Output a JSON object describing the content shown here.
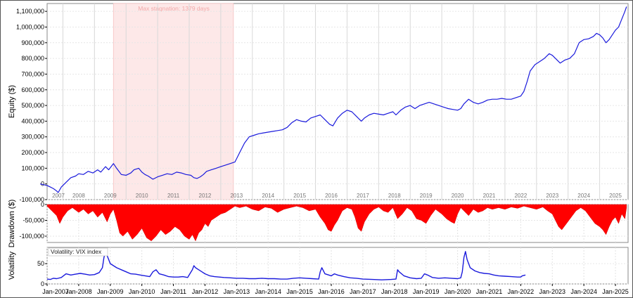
{
  "chart_data": [
    {
      "type": "line",
      "ylabel": "Equity ($)",
      "ylim": [
        -100000,
        1150000
      ],
      "yticks": [
        "-100,000",
        "0",
        "100,000",
        "200,000",
        "300,000",
        "400,000",
        "500,000",
        "600,000",
        "700,000",
        "800,000",
        "900,000",
        "1,000,000",
        "1,100,000"
      ],
      "year_labels": [
        "2007",
        "2008",
        "2009",
        "2010",
        "2011",
        "2012",
        "2013",
        "2014",
        "2015",
        "2016",
        "2017",
        "2018",
        "2019",
        "2020",
        "2021",
        "2022",
        "2023",
        "2024",
        "2025"
      ],
      "stagnation": {
        "label": "Max stagnation: 1379 days",
        "start": 2009.1,
        "end": 2012.9
      },
      "series": [
        {
          "color": "#1a1adc",
          "x": [
            2006.78,
            2007.0,
            2007.1,
            2007.2,
            2007.3,
            2007.35,
            2007.45,
            2007.6,
            2007.75,
            2007.9,
            2008.0,
            2008.15,
            2008.3,
            2008.45,
            2008.6,
            2008.7,
            2008.85,
            2008.95,
            2009.1,
            2009.2,
            2009.35,
            2009.5,
            2009.65,
            2009.75,
            2009.9,
            2010.0,
            2010.1,
            2010.2,
            2010.35,
            2010.5,
            2010.65,
            2010.8,
            2010.95,
            2011.1,
            2011.25,
            2011.4,
            2011.55,
            2011.65,
            2011.75,
            2011.85,
            2011.95,
            2012.05,
            2012.2,
            2012.35,
            2012.5,
            2012.65,
            2012.8,
            2012.95,
            2013.1,
            2013.25,
            2013.4,
            2013.55,
            2013.7,
            2013.85,
            2014.0,
            2014.15,
            2014.3,
            2014.45,
            2014.6,
            2014.75,
            2014.9,
            2015.05,
            2015.2,
            2015.35,
            2015.5,
            2015.65,
            2015.8,
            2015.95,
            2016.05,
            2016.2,
            2016.35,
            2016.5,
            2016.65,
            2016.8,
            2016.95,
            2017.05,
            2017.2,
            2017.35,
            2017.5,
            2017.65,
            2017.8,
            2017.95,
            2018.05,
            2018.2,
            2018.35,
            2018.5,
            2018.65,
            2018.8,
            2018.95,
            2019.1,
            2019.25,
            2019.4,
            2019.55,
            2019.7,
            2019.85,
            2020.0,
            2020.1,
            2020.2,
            2020.35,
            2020.5,
            2020.65,
            2020.8,
            2020.95,
            2021.1,
            2021.25,
            2021.4,
            2021.55,
            2021.7,
            2021.85,
            2022.0,
            2022.1,
            2022.2,
            2022.3,
            2022.45,
            2022.6,
            2022.75,
            2022.9,
            2023.0,
            2023.1,
            2023.25,
            2023.4,
            2023.55,
            2023.7,
            2023.85,
            2024.0,
            2024.15,
            2024.3,
            2024.4,
            2024.5,
            2024.6,
            2024.7,
            2024.8,
            2024.9,
            2025.0,
            2025.1,
            2025.2,
            2025.3,
            2025.35
          ],
          "y": [
            0,
            -10000,
            -20000,
            -30000,
            -45000,
            -55000,
            -20000,
            10000,
            40000,
            50000,
            65000,
            60000,
            80000,
            70000,
            90000,
            75000,
            110000,
            90000,
            130000,
            100000,
            60000,
            55000,
            70000,
            90000,
            100000,
            75000,
            60000,
            50000,
            30000,
            45000,
            55000,
            65000,
            60000,
            75000,
            70000,
            60000,
            55000,
            40000,
            35000,
            45000,
            60000,
            80000,
            90000,
            100000,
            110000,
            120000,
            130000,
            140000,
            200000,
            260000,
            300000,
            310000,
            320000,
            325000,
            330000,
            335000,
            340000,
            345000,
            360000,
            390000,
            410000,
            400000,
            395000,
            420000,
            430000,
            440000,
            410000,
            380000,
            370000,
            420000,
            450000,
            470000,
            460000,
            430000,
            400000,
            420000,
            440000,
            450000,
            445000,
            440000,
            450000,
            460000,
            440000,
            470000,
            490000,
            500000,
            480000,
            500000,
            510000,
            520000,
            510000,
            500000,
            490000,
            480000,
            475000,
            470000,
            480000,
            510000,
            540000,
            520000,
            510000,
            520000,
            535000,
            540000,
            540000,
            545000,
            540000,
            540000,
            550000,
            560000,
            590000,
            650000,
            720000,
            760000,
            780000,
            800000,
            830000,
            820000,
            800000,
            770000,
            790000,
            800000,
            830000,
            900000,
            920000,
            925000,
            940000,
            960000,
            950000,
            930000,
            900000,
            920000,
            950000,
            980000,
            1000000,
            1050000,
            1100000,
            1130000
          ]
        }
      ]
    },
    {
      "type": "area",
      "ylabel": "Drawdown ($)",
      "ylim": [
        -120000,
        0
      ],
      "yticks": [
        "0",
        "-50,000",
        "-100,000"
      ],
      "series": [
        {
          "color": "#ff0000",
          "x": [
            2007.0,
            2007.15,
            2007.3,
            2007.4,
            2007.5,
            2007.65,
            2007.8,
            2008.0,
            2008.15,
            2008.3,
            2008.45,
            2008.6,
            2008.75,
            2008.9,
            2009.0,
            2009.1,
            2009.2,
            2009.3,
            2009.4,
            2009.55,
            2009.7,
            2009.85,
            2010.0,
            2010.15,
            2010.3,
            2010.45,
            2010.6,
            2010.75,
            2010.9,
            2011.05,
            2011.2,
            2011.35,
            2011.5,
            2011.6,
            2011.7,
            2011.8,
            2011.9,
            2012.0,
            2012.1,
            2012.2,
            2012.35,
            2012.5,
            2012.65,
            2012.8,
            2012.95,
            2013.1,
            2013.3,
            2013.5,
            2013.7,
            2013.9,
            2014.1,
            2014.3,
            2014.5,
            2014.7,
            2014.9,
            2015.1,
            2015.3,
            2015.5,
            2015.65,
            2015.8,
            2015.9,
            2016.0,
            2016.1,
            2016.2,
            2016.35,
            2016.5,
            2016.65,
            2016.75,
            2016.85,
            2016.95,
            2017.05,
            2017.2,
            2017.35,
            2017.5,
            2017.65,
            2017.8,
            2017.95,
            2018.1,
            2018.25,
            2018.4,
            2018.55,
            2018.7,
            2018.85,
            2019.0,
            2019.15,
            2019.3,
            2019.5,
            2019.65,
            2019.8,
            2019.9,
            2020.0,
            2020.1,
            2020.2,
            2020.35,
            2020.5,
            2020.65,
            2020.8,
            2020.95,
            2021.1,
            2021.3,
            2021.5,
            2021.7,
            2021.9,
            2022.1,
            2022.3,
            2022.5,
            2022.7,
            2022.85,
            2023.0,
            2023.1,
            2023.2,
            2023.3,
            2023.45,
            2023.6,
            2023.75,
            2023.9,
            2024.05,
            2024.2,
            2024.35,
            2024.5,
            2024.6,
            2024.7,
            2024.8,
            2024.9,
            2025.0,
            2025.1,
            2025.2,
            2025.3,
            2025.35
          ],
          "y": [
            -5000,
            -20000,
            -35000,
            -60000,
            -40000,
            -20000,
            -10000,
            -25000,
            -15000,
            -30000,
            -20000,
            -40000,
            -25000,
            -55000,
            -30000,
            -15000,
            -50000,
            -90000,
            -100000,
            -85000,
            -110000,
            -95000,
            -75000,
            -105000,
            -115000,
            -100000,
            -80000,
            -95000,
            -85000,
            -70000,
            -80000,
            -100000,
            -110000,
            -95000,
            -115000,
            -90000,
            -80000,
            -60000,
            -70000,
            -50000,
            -40000,
            -30000,
            -25000,
            -15000,
            -5000,
            -10000,
            -5000,
            -15000,
            -20000,
            -8000,
            -12000,
            -25000,
            -15000,
            -10000,
            -5000,
            -10000,
            -20000,
            -15000,
            -40000,
            -60000,
            -80000,
            -85000,
            -65000,
            -50000,
            -20000,
            -10000,
            -15000,
            -40000,
            -75000,
            -85000,
            -55000,
            -30000,
            -15000,
            -8000,
            -20000,
            -25000,
            -10000,
            -45000,
            -30000,
            -10000,
            -20000,
            -45000,
            -50000,
            -60000,
            -35000,
            -15000,
            -30000,
            -45000,
            -55000,
            -60000,
            -30000,
            -10000,
            -20000,
            -35000,
            -15000,
            -25000,
            -20000,
            -10000,
            -15000,
            -10000,
            -15000,
            -8000,
            -12000,
            -5000,
            -10000,
            -15000,
            -8000,
            -20000,
            -30000,
            -50000,
            -70000,
            -80000,
            -60000,
            -40000,
            -20000,
            -10000,
            -20000,
            -40000,
            -60000,
            -70000,
            -80000,
            -95000,
            -70000,
            -50000,
            -40000,
            -60000,
            -30000,
            -45000,
            -10000
          ]
        }
      ]
    },
    {
      "type": "line",
      "ylabel": "Volatility",
      "ylim": [
        0,
        90
      ],
      "yticks": [
        "0",
        "50"
      ],
      "legend": "Volatility: VIX index",
      "series": [
        {
          "color": "#1a1adc",
          "x": [
            2007.0,
            2007.1,
            2007.2,
            2007.3,
            2007.45,
            2007.6,
            2007.75,
            2007.9,
            2008.05,
            2008.2,
            2008.35,
            2008.5,
            2008.65,
            2008.75,
            2008.8,
            2008.85,
            2008.9,
            2008.95,
            2009.0,
            2009.1,
            2009.2,
            2009.35,
            2009.5,
            2009.65,
            2009.8,
            2009.95,
            2010.1,
            2010.25,
            2010.35,
            2010.45,
            2010.55,
            2010.7,
            2010.85,
            2011.0,
            2011.15,
            2011.3,
            2011.45,
            2011.6,
            2011.65,
            2011.7,
            2011.8,
            2011.9,
            2012.0,
            2012.15,
            2012.3,
            2012.45,
            2012.6,
            2012.8,
            2013.0,
            2013.2,
            2013.4,
            2013.6,
            2013.8,
            2014.0,
            2014.2,
            2014.4,
            2014.6,
            2014.8,
            2015.0,
            2015.2,
            2015.4,
            2015.6,
            2015.65,
            2015.7,
            2015.8,
            2016.0,
            2016.1,
            2016.2,
            2016.4,
            2016.6,
            2016.8,
            2017.0,
            2017.3,
            2017.6,
            2017.9,
            2018.05,
            2018.1,
            2018.15,
            2018.3,
            2018.5,
            2018.7,
            2018.85,
            2018.95,
            2019.05,
            2019.2,
            2019.4,
            2019.6,
            2019.8,
            2020.0,
            2020.1,
            2020.15,
            2020.2,
            2020.25,
            2020.3,
            2020.4,
            2020.55,
            2020.7,
            2020.85,
            2021.0,
            2021.15,
            2021.3,
            2021.5,
            2021.7,
            2021.9,
            2022.0,
            2022.05,
            2022.15
          ],
          "y": [
            12,
            11,
            14,
            13,
            16,
            25,
            22,
            24,
            26,
            24,
            22,
            23,
            28,
            40,
            65,
            80,
            70,
            60,
            50,
            45,
            40,
            35,
            30,
            25,
            24,
            22,
            20,
            18,
            30,
            35,
            25,
            22,
            18,
            17,
            17,
            18,
            16,
            35,
            45,
            40,
            35,
            30,
            25,
            20,
            18,
            17,
            16,
            15,
            14,
            14,
            13,
            13,
            14,
            13,
            13,
            12,
            12,
            14,
            15,
            14,
            13,
            12,
            30,
            40,
            25,
            20,
            25,
            22,
            18,
            15,
            14,
            12,
            11,
            10,
            11,
            12,
            35,
            30,
            20,
            15,
            13,
            14,
            25,
            22,
            16,
            14,
            15,
            14,
            13,
            15,
            30,
            65,
            80,
            60,
            40,
            32,
            28,
            26,
            25,
            22,
            20,
            19,
            18,
            17,
            17,
            20,
            22
          ]
        }
      ]
    }
  ],
  "vol_xticks": [
    "Jan-2007",
    "Jan-2008",
    "Jan-2009",
    "Jan-2010",
    "Jan-2011",
    "Jan-2012",
    "Jan-2013",
    "Jan-2014",
    "Jan-2015",
    "Jan-2016",
    "Jan-2017",
    "Jan-2018",
    "Jan-2019",
    "Jan-2020",
    "Jan-2021",
    "Jan-2022",
    "Jan-2023",
    "Jan-2024",
    "Jan-2025"
  ]
}
